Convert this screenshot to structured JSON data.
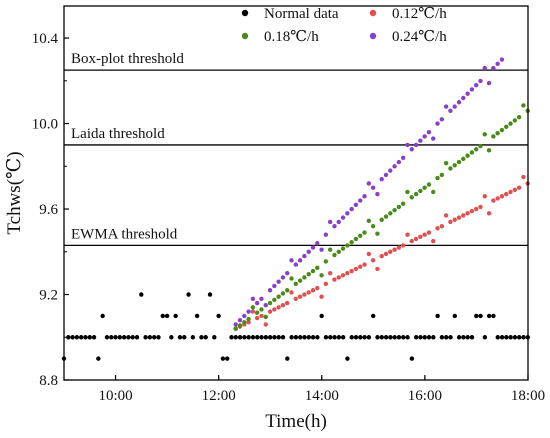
{
  "chart_data": {
    "type": "scatter",
    "xlabel": "Time(h)",
    "ylabel": "Tchws(℃)",
    "xlim": [
      9,
      18
    ],
    "ylim": [
      8.8,
      10.55
    ],
    "xticks": [
      10,
      12,
      14,
      16,
      18
    ],
    "xtick_labels": [
      "10:00",
      "12:00",
      "14:00",
      "16:00",
      "18:00"
    ],
    "yticks": [
      8.8,
      9.2,
      9.6,
      10.0,
      10.4
    ],
    "ytick_labels": [
      "8.8",
      "9.2",
      "9.6",
      "10.0",
      "10.4"
    ],
    "legend_position": "top-right",
    "thresholds": [
      {
        "label": "Box-plot threshold",
        "value": 10.25
      },
      {
        "label": "Laida threshold",
        "value": 9.9
      },
      {
        "label": "EWMA threshold",
        "value": 9.43
      }
    ],
    "normal": {
      "base": 9.0,
      "start": 9.0,
      "end": 18.0,
      "step": 0.0833,
      "overrides": [
        {
          "x": 9.0,
          "y": 8.9
        },
        {
          "x": 9.67,
          "y": 8.9
        },
        {
          "x": 9.75,
          "y": 9.1
        },
        {
          "x": 10.5,
          "y": 9.2
        },
        {
          "x": 10.92,
          "y": 9.1
        },
        {
          "x": 11.0,
          "y": 9.1
        },
        {
          "x": 11.17,
          "y": 9.1
        },
        {
          "x": 11.42,
          "y": 9.2
        },
        {
          "x": 11.58,
          "y": 9.1
        },
        {
          "x": 11.83,
          "y": 9.2
        },
        {
          "x": 12.0,
          "y": 9.1
        },
        {
          "x": 12.08,
          "y": 8.9
        },
        {
          "x": 12.17,
          "y": 8.9
        },
        {
          "x": 13.33,
          "y": 8.9
        },
        {
          "x": 14.0,
          "y": 9.1
        },
        {
          "x": 14.42,
          "y": 8.9
        },
        {
          "x": 14.5,
          "y": 8.9
        },
        {
          "x": 15.0,
          "y": 9.1
        },
        {
          "x": 15.75,
          "y": 8.9
        },
        {
          "x": 16.25,
          "y": 9.1
        },
        {
          "x": 16.42,
          "y": 9.1
        },
        {
          "x": 16.58,
          "y": 9.1
        },
        {
          "x": 16.92,
          "y": 9.1
        },
        {
          "x": 17.0,
          "y": 9.1
        },
        {
          "x": 17.08,
          "y": 9.1
        },
        {
          "x": 17.17,
          "y": 9.1
        },
        {
          "x": 17.25,
          "y": 9.1
        },
        {
          "x": 17.33,
          "y": 9.1
        },
        {
          "x": 17.42,
          "y": 9.1
        }
      ]
    },
    "series": [
      {
        "name": "Normal data",
        "color": "#000000"
      },
      {
        "name": "0.12℃/h",
        "color": "#e05050",
        "rate": 0.12,
        "start_x": 12.33,
        "end_x": 18.0,
        "start_y": 9.04
      },
      {
        "name": "0.18℃/h",
        "color": "#4a8a1a",
        "rate": 0.18,
        "start_x": 12.33,
        "end_x": 18.0,
        "start_y": 9.04
      },
      {
        "name": "0.24℃/h",
        "color": "#8840c8",
        "rate": 0.24,
        "start_x": 12.33,
        "end_x": 17.5,
        "start_y": 9.06
      }
    ]
  }
}
